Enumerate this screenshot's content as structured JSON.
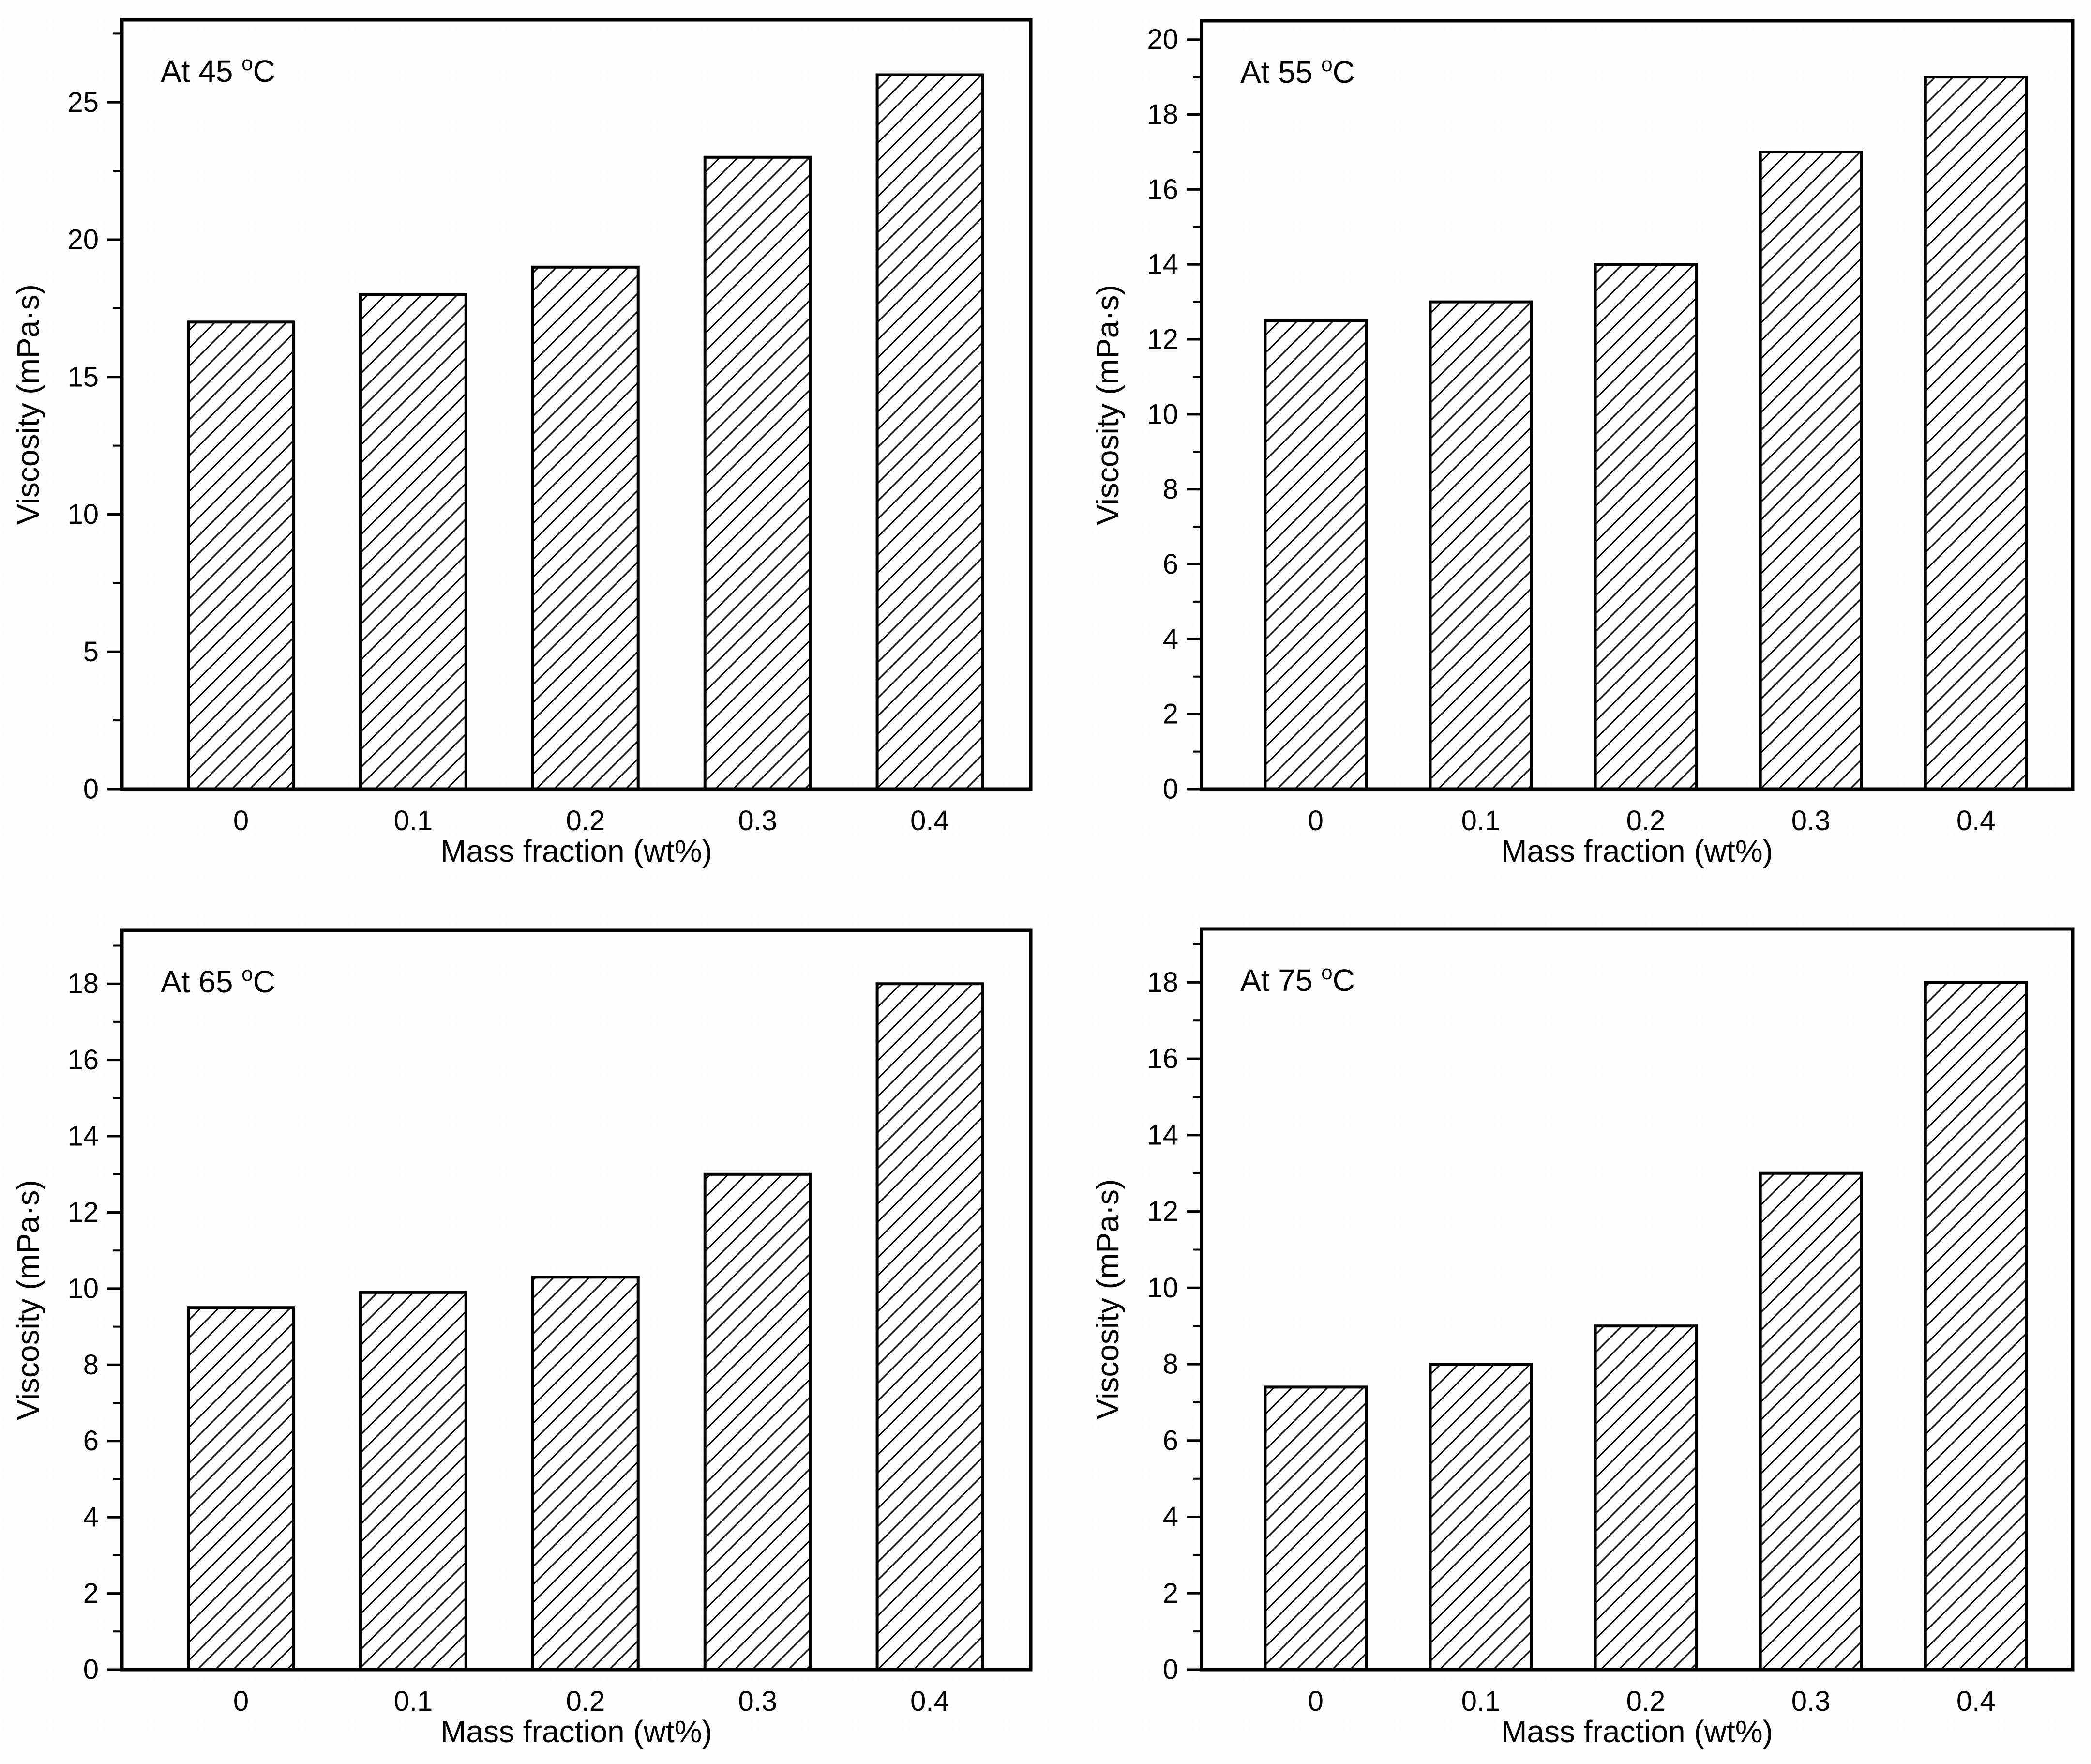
{
  "figure": {
    "background": "#ffffff",
    "ink_color": "#000000",
    "bar_fill": "#ffffff",
    "bar_hatch_style": "forward-diagonal-lines"
  },
  "chart_data": [
    {
      "type": "bar",
      "title": "At 45 °C",
      "xlabel": "Mass fraction (wt%)",
      "ylabel": "Viscosity (mPa·s)",
      "categories": [
        "0",
        "0.1",
        "0.2",
        "0.3",
        "0.4"
      ],
      "values": [
        17,
        18,
        19,
        23,
        26
      ],
      "ylim": [
        0,
        28
      ],
      "y_major_step": 5,
      "y_minor_step": 2.5,
      "y_top_label": 25,
      "grid": "off",
      "legend": "none"
    },
    {
      "type": "bar",
      "title": "At 55 °C",
      "xlabel": "Mass fraction (wt%)",
      "ylabel": "Viscosity (mPa·s)",
      "categories": [
        "0",
        "0.1",
        "0.2",
        "0.3",
        "0.4"
      ],
      "values": [
        12.5,
        13,
        14,
        17,
        19
      ],
      "ylim": [
        0,
        20.5
      ],
      "y_major_step": 2,
      "y_minor_step": 1,
      "y_top_label": 20,
      "grid": "off",
      "legend": "none"
    },
    {
      "type": "bar",
      "title": "At 65 °C",
      "xlabel": "Mass fraction (wt%)",
      "ylabel": "Viscosity (mPa·s)",
      "categories": [
        "0",
        "0.1",
        "0.2",
        "0.3",
        "0.4"
      ],
      "values": [
        9.5,
        9.9,
        10.3,
        13,
        18
      ],
      "ylim": [
        0,
        19.4
      ],
      "y_major_step": 2,
      "y_minor_step": 1,
      "y_top_label": 18,
      "grid": "off",
      "legend": "none"
    },
    {
      "type": "bar",
      "title": "At 75 °C",
      "xlabel": "Mass fraction (wt%)",
      "ylabel": "Viscosity (mPa·s)",
      "categories": [
        "0",
        "0.1",
        "0.2",
        "0.3",
        "0.4"
      ],
      "values": [
        7.4,
        8,
        9,
        13,
        18
      ],
      "ylim": [
        0,
        19.4
      ],
      "y_major_step": 2,
      "y_minor_step": 1,
      "y_top_label": 18,
      "grid": "off",
      "legend": "none"
    }
  ]
}
